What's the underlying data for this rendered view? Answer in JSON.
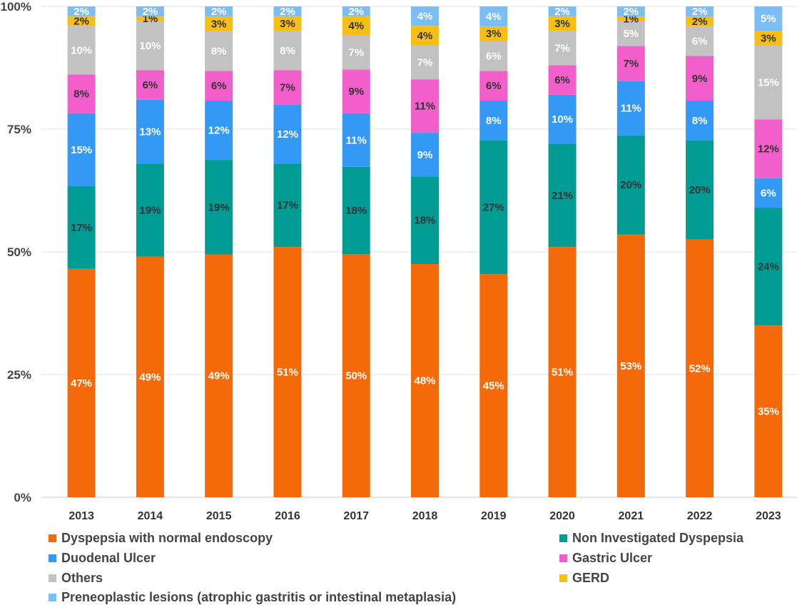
{
  "chart_data": {
    "type": "bar",
    "stacked": true,
    "percent": true,
    "categories": [
      "2013",
      "2014",
      "2015",
      "2016",
      "2017",
      "2018",
      "2019",
      "2020",
      "2021",
      "2022",
      "2023"
    ],
    "y_ticks": [
      "0%",
      "25%",
      "50%",
      "75%",
      "100%"
    ],
    "ylim": [
      0,
      100
    ],
    "series": [
      {
        "name": "Dyspepsia with normal endoscopy",
        "color": "#F46A0A",
        "label_color": "#ffffff",
        "values": [
          47,
          49,
          49,
          51,
          50,
          48,
          45,
          51,
          53,
          52,
          35
        ],
        "labels": [
          "47%",
          "49%",
          "49%",
          "51%",
          "50%",
          "48%",
          "45%",
          "51%",
          "53%",
          "52%",
          "35%"
        ]
      },
      {
        "name": "Non Investigated Dyspepsia",
        "color": "#009C94",
        "label_color": "#333333",
        "values": [
          17,
          19,
          19,
          17,
          18,
          18,
          27,
          21,
          20,
          20,
          24
        ],
        "labels": [
          "17%",
          "19%",
          "19%",
          "17%",
          "18%",
          "18%",
          "27%",
          "21%",
          "20%",
          "20%",
          "24%"
        ]
      },
      {
        "name": "Duodenal Ulcer",
        "color": "#3399F5",
        "label_color": "#ffffff",
        "values": [
          15,
          13,
          12,
          12,
          11,
          9,
          8,
          10,
          11,
          8,
          6
        ],
        "labels": [
          "15%",
          "13%",
          "12%",
          "12%",
          "11%",
          "9%",
          "8%",
          "10%",
          "11%",
          "8%",
          "6%"
        ]
      },
      {
        "name": "Gastric Ulcer",
        "color": "#F25FCB",
        "label_color": "#333333",
        "values": [
          8,
          6,
          6,
          7,
          9,
          11,
          6,
          6,
          7,
          9,
          12
        ],
        "labels": [
          "8%",
          "6%",
          "6%",
          "7%",
          "9%",
          "11%",
          "6%",
          "6%",
          "7%",
          "9%",
          "12%"
        ]
      },
      {
        "name": "Others",
        "color": "#C2C2C2",
        "label_color": "#ffffff",
        "values": [
          10,
          10,
          8,
          8,
          7,
          7,
          6,
          7,
          5,
          6,
          15
        ],
        "labels": [
          "10%",
          "10%",
          "8%",
          "8%",
          "7%",
          "7%",
          "6%",
          "7%",
          "5%",
          "6%",
          "15%"
        ]
      },
      {
        "name": "GERD",
        "color": "#F7BE16",
        "label_color": "#333333",
        "values": [
          2,
          1,
          3,
          3,
          4,
          4,
          3,
          3,
          1,
          2,
          3
        ],
        "labels": [
          "2%",
          "1%",
          "3%",
          "3%",
          "4%",
          "4%",
          "3%",
          "3%",
          "1%",
          "2%",
          "3%"
        ]
      },
      {
        "name": "Preneoplastic lesions (atrophic gastritis or intestinal metaplasia)",
        "color": "#7BBDF5",
        "label_color": "#ffffff",
        "values": [
          2,
          2,
          2,
          2,
          2,
          4,
          4,
          2,
          2,
          2,
          5
        ],
        "labels": [
          "2%",
          "2%",
          "2%",
          "2%",
          "2%",
          "4%",
          "4%",
          "2%",
          "2%",
          "2%",
          "5%"
        ]
      }
    ],
    "legend_position": "bottom"
  },
  "legend": {
    "dyspepsia": "Dyspepsia with normal endoscopy",
    "non_investigated": "Non Investigated Dyspepsia",
    "duodenal": "Duodenal Ulcer",
    "gastric": "Gastric Ulcer",
    "others": "Others",
    "gerd": "GERD",
    "preneoplastic": "Preneoplastic lesions (atrophic gastritis or intestinal metaplasia)"
  }
}
